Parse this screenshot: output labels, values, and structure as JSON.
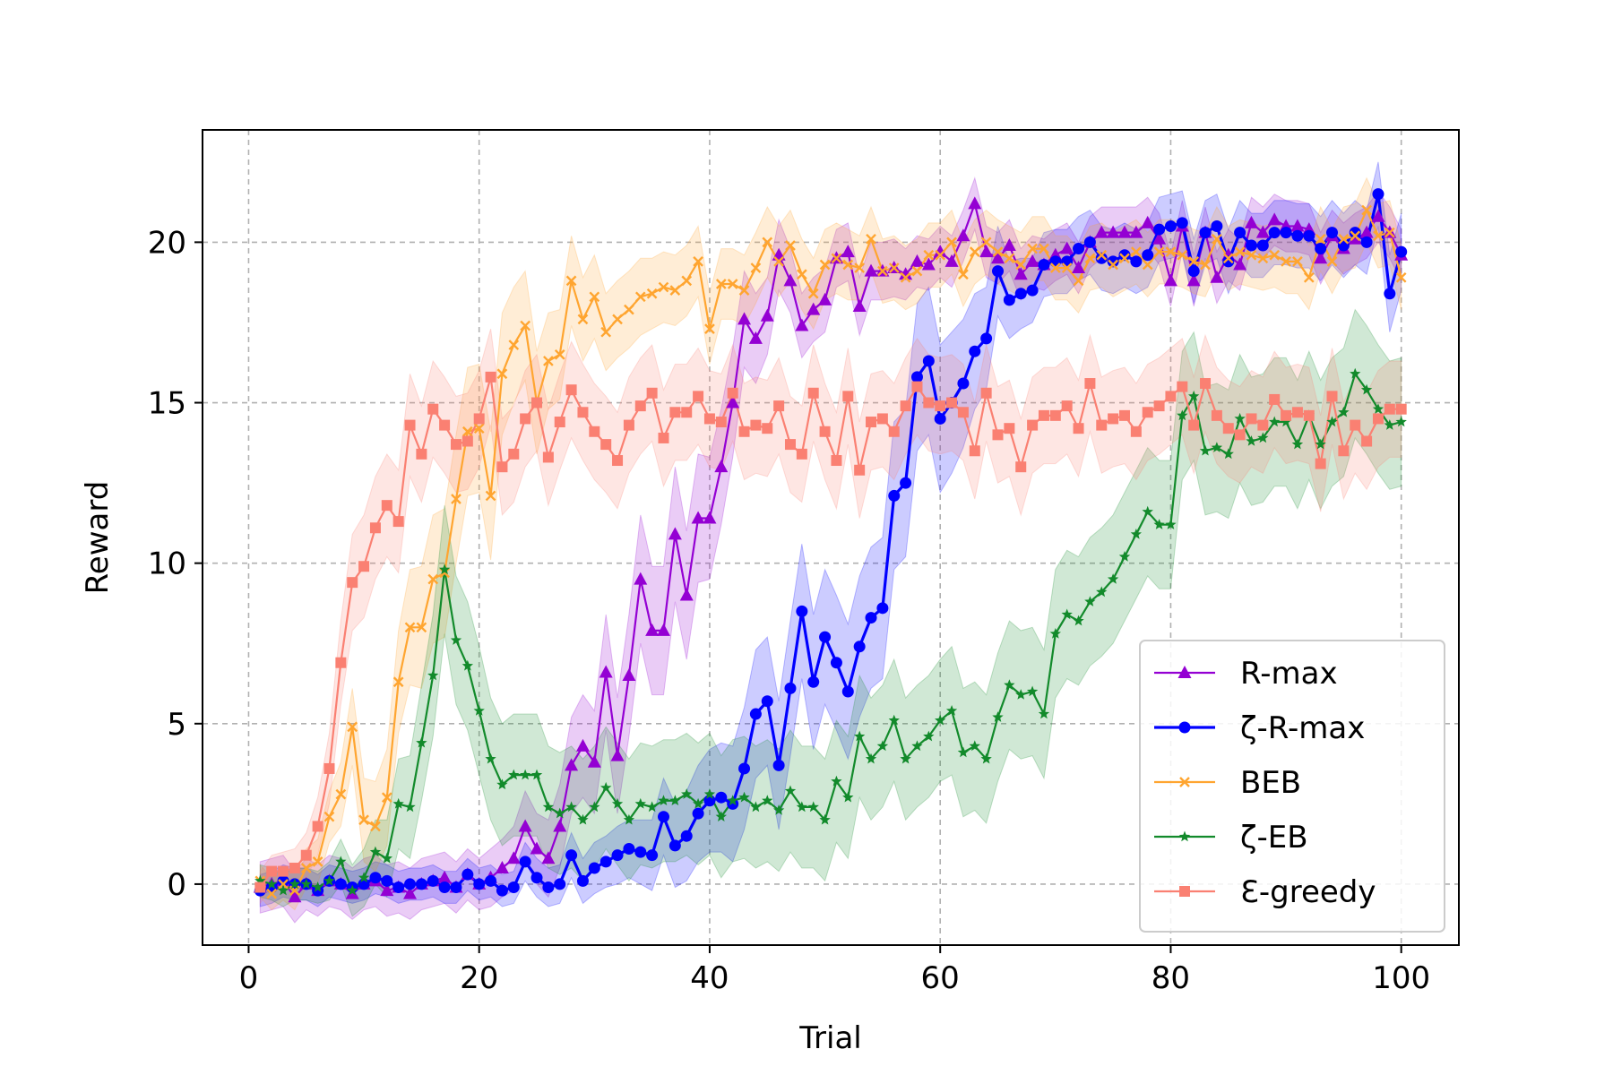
{
  "chart_data": {
    "type": "line",
    "xlabel": "Trial",
    "ylabel": "Reward",
    "xlim": [
      -4,
      105
    ],
    "ylim": [
      -1.9,
      23.5
    ],
    "xticks": [
      0,
      20,
      40,
      60,
      80,
      100
    ],
    "yticks": [
      0,
      5,
      10,
      15,
      20
    ],
    "grid": true,
    "legend_position": "lower-right",
    "x": [
      1,
      2,
      3,
      4,
      5,
      6,
      7,
      8,
      9,
      10,
      11,
      12,
      13,
      14,
      15,
      16,
      17,
      18,
      19,
      20,
      21,
      22,
      23,
      24,
      25,
      26,
      27,
      28,
      29,
      30,
      31,
      32,
      33,
      34,
      35,
      36,
      37,
      38,
      39,
      40,
      41,
      42,
      43,
      44,
      45,
      46,
      47,
      48,
      49,
      50,
      51,
      52,
      53,
      54,
      55,
      56,
      57,
      58,
      59,
      60,
      61,
      62,
      63,
      64,
      65,
      66,
      67,
      68,
      69,
      70,
      71,
      72,
      73,
      74,
      75,
      76,
      77,
      78,
      79,
      80,
      81,
      82,
      83,
      84,
      85,
      86,
      87,
      88,
      89,
      90,
      91,
      92,
      93,
      94,
      95,
      96,
      97,
      98,
      99,
      100
    ],
    "series": [
      {
        "name": "R-max",
        "color": "#9400d3",
        "marker": "triangle",
        "values": [
          -0.1,
          0.0,
          0.1,
          -0.4,
          0.0,
          -0.2,
          0.1,
          0.0,
          -0.3,
          0.0,
          0.1,
          -0.2,
          -0.1,
          -0.3,
          0.0,
          0.1,
          0.2,
          -0.1,
          0.3,
          0.0,
          0.2,
          0.5,
          0.8,
          1.8,
          1.1,
          0.8,
          1.8,
          3.7,
          4.3,
          3.8,
          6.6,
          4.0,
          6.5,
          9.5,
          7.9,
          7.9,
          10.9,
          9.0,
          11.4,
          11.4,
          13.0,
          15.0,
          17.6,
          17.0,
          17.7,
          19.6,
          18.8,
          17.4,
          17.9,
          18.2,
          19.5,
          19.7,
          18.0,
          19.1,
          19.1,
          19.2,
          19.0,
          19.4,
          19.3,
          19.7,
          19.4,
          20.2,
          21.2,
          19.7,
          19.5,
          19.9,
          19.0,
          19.4,
          19.3,
          19.6,
          19.8,
          19.2,
          20.0,
          20.3,
          20.3,
          20.3,
          20.3,
          20.6,
          20.1,
          18.8,
          20.5,
          18.8,
          20.3,
          18.9,
          19.6,
          19.3,
          20.6,
          20.3,
          20.7,
          20.5,
          20.5,
          20.4,
          19.5,
          20.2,
          19.8,
          20.1,
          20.3,
          20.8,
          20.3,
          19.6
        ],
        "band": [
          0.8,
          0.8,
          0.8,
          0.8,
          0.8,
          0.8,
          0.8,
          0.8,
          0.8,
          0.8,
          0.8,
          0.8,
          0.8,
          0.8,
          0.8,
          0.8,
          0.8,
          0.8,
          0.8,
          0.8,
          0.9,
          0.9,
          1.0,
          1.1,
          1.1,
          1.2,
          1.3,
          1.5,
          1.6,
          1.6,
          1.8,
          1.8,
          1.9,
          2.0,
          2.0,
          2.0,
          2.1,
          2.0,
          2.0,
          1.9,
          1.8,
          1.7,
          1.5,
          1.4,
          1.2,
          1.1,
          1.0,
          1.0,
          1.0,
          1.0,
          0.9,
          0.9,
          0.9,
          0.9,
          0.9,
          0.9,
          0.8,
          0.8,
          0.8,
          0.8,
          0.8,
          0.8,
          0.8,
          0.8,
          0.8,
          0.8,
          0.8,
          0.8,
          0.8,
          0.8,
          0.8,
          0.8,
          0.8,
          0.8,
          0.8,
          0.8,
          0.8,
          0.8,
          0.8,
          0.8,
          0.8,
          0.8,
          0.8,
          0.8,
          0.8,
          0.8,
          0.8,
          0.8,
          0.8,
          0.8,
          0.8,
          0.8,
          0.8,
          0.8,
          0.8,
          0.8,
          0.8,
          0.8,
          0.8,
          0.8
        ]
      },
      {
        "name": "ζ-R-max",
        "color": "#0000ff",
        "marker": "circle",
        "values": [
          -0.2,
          -0.1,
          0.1,
          0.0,
          0.0,
          -0.2,
          0.1,
          0.0,
          -0.1,
          0.0,
          0.2,
          0.1,
          -0.1,
          0.0,
          0.0,
          0.1,
          -0.1,
          -0.1,
          0.3,
          0.0,
          0.1,
          -0.2,
          -0.1,
          0.7,
          0.2,
          -0.1,
          0.0,
          0.9,
          0.1,
          0.5,
          0.7,
          0.9,
          1.1,
          1.0,
          0.9,
          2.1,
          1.2,
          1.5,
          2.2,
          2.6,
          2.7,
          2.5,
          3.6,
          5.3,
          5.7,
          3.7,
          6.1,
          8.5,
          6.3,
          7.7,
          6.9,
          6.0,
          7.4,
          8.3,
          8.6,
          12.1,
          12.5,
          15.8,
          16.3,
          14.5,
          15.0,
          15.6,
          16.6,
          17.0,
          19.1,
          18.2,
          18.4,
          18.5,
          19.3,
          19.4,
          19.4,
          19.8,
          20.0,
          19.5,
          19.4,
          19.6,
          19.4,
          19.6,
          20.4,
          20.5,
          20.6,
          19.1,
          20.3,
          20.5,
          19.4,
          20.3,
          19.9,
          19.9,
          20.3,
          20.3,
          20.2,
          20.2,
          19.8,
          20.3,
          19.9,
          20.3,
          20.0,
          21.5,
          18.4,
          19.7
        ],
        "band": [
          0.5,
          0.5,
          0.5,
          0.5,
          0.5,
          0.5,
          0.5,
          0.5,
          0.5,
          0.5,
          0.5,
          0.5,
          0.5,
          0.5,
          0.5,
          0.5,
          0.5,
          0.5,
          0.5,
          0.5,
          0.5,
          0.5,
          0.5,
          0.6,
          0.6,
          0.6,
          0.6,
          0.7,
          0.7,
          0.8,
          0.8,
          0.9,
          0.9,
          1.0,
          1.1,
          1.2,
          1.3,
          1.4,
          1.5,
          1.6,
          1.7,
          1.8,
          1.9,
          2.0,
          2.0,
          2.0,
          2.1,
          2.1,
          2.1,
          2.1,
          2.1,
          2.1,
          2.2,
          2.2,
          2.2,
          2.3,
          2.3,
          2.3,
          2.3,
          2.3,
          2.2,
          2.0,
          1.8,
          1.6,
          1.4,
          1.2,
          1.1,
          1.0,
          1.0,
          1.0,
          1.0,
          1.0,
          1.0,
          1.0,
          1.0,
          1.0,
          1.0,
          1.0,
          1.0,
          1.0,
          1.0,
          1.0,
          1.0,
          1.0,
          1.0,
          1.0,
          1.0,
          1.0,
          1.0,
          1.0,
          1.0,
          1.0,
          1.0,
          1.0,
          1.0,
          1.0,
          1.0,
          1.0,
          1.2,
          1.2
        ]
      },
      {
        "name": "BEB",
        "color": "#ffa530",
        "marker": "x",
        "values": [
          0.1,
          -0.3,
          0.0,
          -0.2,
          0.5,
          0.7,
          2.1,
          2.8,
          4.9,
          2.0,
          1.8,
          2.7,
          6.3,
          8.0,
          8.0,
          9.5,
          9.7,
          12.0,
          14.1,
          14.2,
          12.1,
          15.9,
          16.8,
          17.4,
          15.0,
          16.3,
          16.5,
          18.8,
          17.6,
          18.3,
          17.2,
          17.6,
          17.9,
          18.3,
          18.4,
          18.6,
          18.5,
          18.8,
          19.4,
          17.3,
          18.7,
          18.7,
          18.5,
          19.2,
          20.0,
          19.4,
          19.9,
          19.0,
          18.4,
          19.3,
          19.5,
          19.3,
          19.2,
          20.1,
          19.1,
          19.2,
          18.9,
          19.1,
          19.6,
          19.6,
          20.0,
          19.0,
          19.7,
          20.0,
          19.7,
          19.5,
          19.3,
          19.8,
          19.8,
          19.2,
          19.2,
          18.8,
          19.5,
          19.6,
          19.3,
          19.5,
          19.7,
          19.3,
          19.7,
          19.7,
          19.6,
          19.4,
          19.3,
          20.1,
          19.5,
          19.7,
          19.6,
          19.5,
          19.6,
          19.4,
          19.4,
          18.9,
          20.1,
          19.4,
          20.1,
          20.2,
          21.0,
          20.2,
          20.3,
          18.9
        ],
        "band": [
          0.5,
          0.5,
          0.5,
          0.6,
          0.6,
          0.7,
          0.8,
          1.0,
          1.2,
          1.3,
          1.4,
          1.5,
          1.6,
          1.8,
          1.9,
          2.0,
          2.0,
          2.0,
          2.0,
          2.0,
          2.0,
          1.9,
          1.8,
          1.7,
          1.6,
          1.5,
          1.4,
          1.4,
          1.3,
          1.3,
          1.2,
          1.2,
          1.2,
          1.2,
          1.1,
          1.1,
          1.1,
          1.1,
          1.1,
          1.1,
          1.1,
          1.1,
          1.1,
          1.1,
          1.1,
          1.1,
          1.1,
          1.1,
          1.1,
          1.1,
          1.1,
          1.1,
          1.0,
          1.0,
          1.0,
          1.0,
          1.0,
          1.0,
          1.0,
          1.0,
          1.0,
          1.0,
          1.0,
          1.0,
          1.0,
          1.0,
          1.0,
          1.0,
          1.0,
          1.0,
          1.0,
          1.0,
          1.0,
          1.0,
          1.0,
          1.0,
          1.0,
          1.0,
          1.0,
          1.0,
          1.0,
          1.0,
          1.0,
          1.0,
          1.0,
          1.0,
          1.0,
          1.0,
          1.0,
          1.0,
          1.0,
          1.0,
          1.0,
          1.0,
          1.0,
          1.0,
          1.0,
          1.0,
          1.0,
          1.0
        ]
      },
      {
        "name": "ζ-EB",
        "color": "#128a2b",
        "marker": "star",
        "values": [
          0.1,
          0.0,
          -0.2,
          0.0,
          0.0,
          -0.1,
          0.1,
          0.7,
          -0.2,
          0.2,
          1.0,
          0.8,
          2.5,
          2.4,
          4.4,
          6.5,
          9.8,
          7.6,
          6.8,
          5.4,
          3.9,
          3.1,
          3.4,
          3.4,
          3.4,
          2.4,
          2.2,
          2.4,
          2.0,
          2.4,
          3.0,
          2.5,
          2.0,
          2.5,
          2.4,
          2.6,
          2.6,
          2.8,
          2.5,
          2.8,
          2.1,
          2.6,
          2.7,
          2.4,
          2.6,
          2.3,
          2.9,
          2.4,
          2.4,
          2.0,
          3.2,
          2.7,
          4.6,
          3.9,
          4.3,
          5.1,
          3.9,
          4.3,
          4.6,
          5.1,
          5.4,
          4.1,
          4.3,
          3.9,
          5.2,
          6.2,
          5.9,
          6.0,
          5.3,
          7.8,
          8.4,
          8.2,
          8.8,
          9.1,
          9.5,
          10.2,
          10.9,
          11.6,
          11.2,
          11.2,
          14.6,
          15.2,
          13.5,
          13.6,
          13.4,
          14.5,
          13.8,
          13.9,
          14.4,
          14.4,
          13.7,
          14.6,
          13.7,
          14.4,
          14.7,
          15.9,
          15.4,
          14.8,
          14.3,
          14.4
        ],
        "band": [
          0.5,
          0.5,
          0.5,
          0.5,
          0.5,
          0.5,
          0.6,
          0.7,
          0.8,
          0.9,
          1.0,
          1.2,
          1.4,
          1.6,
          1.8,
          1.9,
          2.0,
          2.0,
          2.0,
          2.0,
          1.9,
          1.9,
          1.9,
          1.9,
          1.9,
          1.9,
          1.9,
          1.9,
          1.9,
          1.9,
          1.9,
          1.9,
          1.9,
          1.9,
          1.9,
          1.9,
          1.9,
          1.9,
          1.9,
          1.9,
          1.9,
          1.9,
          1.9,
          1.9,
          1.9,
          1.9,
          1.9,
          1.9,
          1.9,
          1.9,
          1.9,
          1.9,
          1.9,
          1.9,
          1.9,
          1.9,
          1.9,
          1.9,
          1.9,
          1.9,
          2.0,
          2.0,
          2.0,
          2.0,
          2.0,
          2.0,
          2.0,
          2.0,
          2.0,
          2.0,
          2.0,
          2.0,
          2.0,
          2.0,
          2.0,
          2.0,
          2.0,
          2.0,
          2.0,
          2.0,
          2.0,
          2.0,
          2.0,
          2.0,
          2.0,
          2.0,
          2.0,
          2.0,
          2.0,
          2.0,
          2.0,
          2.0,
          2.0,
          2.0,
          2.0,
          2.0,
          2.0,
          2.0,
          2.0,
          2.0
        ]
      },
      {
        "name": "Ɛ-greedy",
        "color": "#fa8072",
        "marker": "square",
        "values": [
          -0.1,
          0.4,
          0.4,
          0.5,
          0.9,
          1.8,
          3.6,
          6.9,
          9.4,
          9.9,
          11.1,
          11.8,
          11.3,
          14.3,
          13.4,
          14.8,
          14.3,
          13.7,
          13.8,
          14.5,
          15.8,
          13.0,
          13.4,
          14.5,
          15.0,
          13.3,
          14.4,
          15.4,
          14.7,
          14.1,
          13.7,
          13.2,
          14.3,
          14.9,
          15.3,
          13.9,
          14.7,
          14.7,
          15.2,
          14.5,
          14.4,
          15.3,
          14.1,
          14.3,
          14.2,
          14.9,
          13.7,
          13.4,
          15.3,
          14.1,
          13.2,
          15.2,
          12.9,
          14.4,
          14.5,
          14.1,
          14.9,
          15.5,
          15.0,
          14.9,
          15.0,
          14.7,
          13.5,
          15.3,
          14.0,
          14.2,
          13.0,
          14.3,
          14.6,
          14.6,
          14.9,
          14.2,
          15.6,
          14.3,
          14.5,
          14.6,
          14.1,
          14.7,
          14.9,
          15.2,
          15.5,
          14.3,
          15.6,
          14.6,
          14.2,
          14.0,
          14.5,
          14.3,
          15.1,
          14.6,
          14.7,
          14.6,
          13.1,
          15.2,
          13.5,
          14.3,
          13.8,
          14.5,
          14.8,
          14.8
        ],
        "band": [
          0.5,
          0.5,
          0.6,
          0.6,
          0.7,
          0.9,
          1.1,
          1.3,
          1.5,
          1.6,
          1.6,
          1.6,
          1.6,
          1.6,
          1.5,
          1.5,
          1.5,
          1.5,
          1.5,
          1.5,
          1.5,
          1.5,
          1.5,
          1.5,
          1.5,
          1.5,
          1.5,
          1.5,
          1.5,
          1.5,
          1.5,
          1.5,
          1.5,
          1.5,
          1.5,
          1.5,
          1.5,
          1.5,
          1.5,
          1.5,
          1.5,
          1.5,
          1.5,
          1.5,
          1.5,
          1.5,
          1.5,
          1.5,
          1.5,
          1.5,
          1.5,
          1.5,
          1.5,
          1.5,
          1.5,
          1.5,
          1.5,
          1.5,
          1.5,
          1.5,
          1.5,
          1.5,
          1.5,
          1.5,
          1.5,
          1.5,
          1.5,
          1.5,
          1.5,
          1.5,
          1.5,
          1.5,
          1.5,
          1.5,
          1.5,
          1.5,
          1.5,
          1.5,
          1.5,
          1.5,
          1.5,
          1.5,
          1.5,
          1.5,
          1.5,
          1.5,
          1.5,
          1.5,
          1.5,
          1.5,
          1.5,
          1.5,
          1.5,
          1.5,
          1.5,
          1.5,
          1.5,
          1.5,
          1.5,
          1.5
        ]
      }
    ]
  }
}
